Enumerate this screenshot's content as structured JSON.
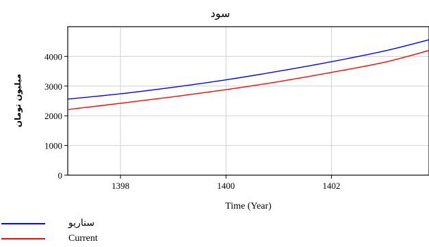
{
  "chart_data": {
    "type": "line",
    "title": "سود",
    "xlabel": "Time (Year)",
    "ylabel": "میلیون تومان",
    "xlim": [
      1397,
      1403.85
    ],
    "ylim": [
      0,
      5000
    ],
    "x_ticks": [
      1398,
      1400,
      1402
    ],
    "y_ticks": [
      0,
      1000,
      2000,
      3000,
      4000
    ],
    "grid": true,
    "legend_position": "bottom-left",
    "series": [
      {
        "name": "سناریو",
        "color": "#0000ff",
        "x": [
          1397,
          1398,
          1399,
          1400,
          1401,
          1402,
          1403,
          1403.85
        ],
        "y": [
          2560,
          2740,
          2960,
          3210,
          3500,
          3820,
          4180,
          4560
        ]
      },
      {
        "name": "Current",
        "color": "#ff0000",
        "x": [
          1397,
          1398,
          1399,
          1400,
          1401,
          1402,
          1403,
          1403.85
        ],
        "y": [
          2210,
          2420,
          2640,
          2880,
          3150,
          3460,
          3800,
          4200
        ]
      }
    ]
  }
}
